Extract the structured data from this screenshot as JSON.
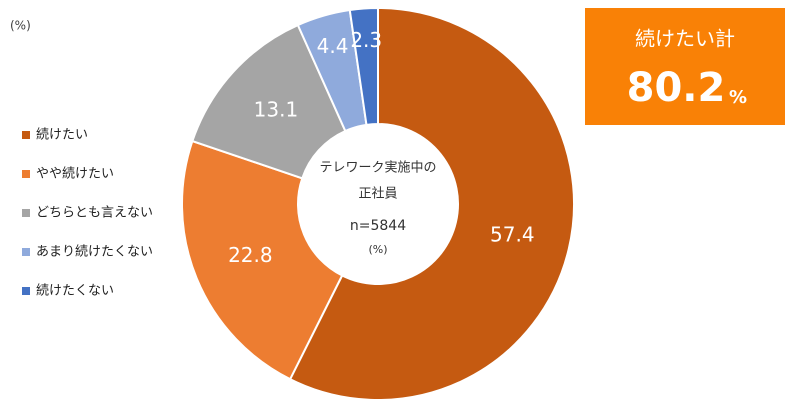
{
  "chart_data": {
    "type": "donut",
    "unit_note": "(%)",
    "categories": [
      "続けたい",
      "やや続けたい",
      "どちらとも言えない",
      "あまり続けたくない",
      "続けたくない"
    ],
    "values": [
      57.4,
      22.8,
      13.1,
      4.4,
      2.3
    ],
    "colors": [
      "#c55a11",
      "#ed7d31",
      "#a5a5a5",
      "#8faadc",
      "#4472c4"
    ],
    "legend": "left",
    "center_text": [
      "テレワーク実施中の",
      "正社員",
      "n=5844",
      "(%)"
    ],
    "callout": {
      "label": "続けたい計",
      "value": 80.2,
      "unit": "%"
    }
  }
}
